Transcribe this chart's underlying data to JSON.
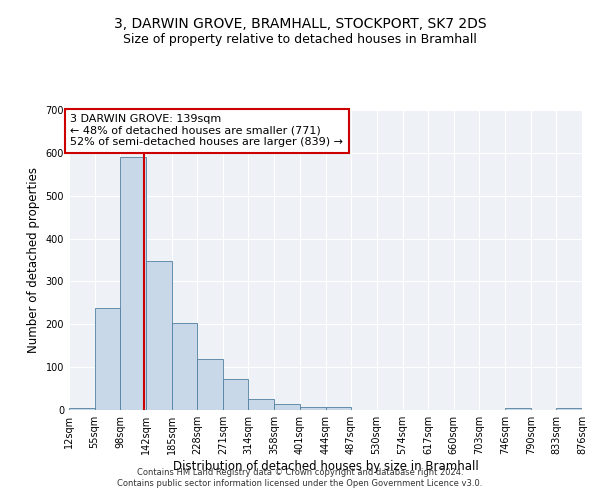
{
  "title": "3, DARWIN GROVE, BRAMHALL, STOCKPORT, SK7 2DS",
  "subtitle": "Size of property relative to detached houses in Bramhall",
  "xlabel": "Distribution of detached houses by size in Bramhall",
  "ylabel": "Number of detached properties",
  "footer_line1": "Contains HM Land Registry data © Crown copyright and database right 2024.",
  "footer_line2": "Contains public sector information licensed under the Open Government Licence v3.0.",
  "bin_edges": [
    12,
    55,
    98,
    142,
    185,
    228,
    271,
    314,
    358,
    401,
    444,
    487,
    530,
    574,
    617,
    660,
    703,
    746,
    790,
    833,
    876
  ],
  "bar_heights": [
    5,
    238,
    590,
    348,
    203,
    118,
    72,
    25,
    13,
    7,
    8,
    0,
    0,
    0,
    0,
    0,
    0,
    5,
    0,
    5
  ],
  "bar_color": "#c8d8e8",
  "bar_edgecolor": "#5080a0",
  "property_size": 139,
  "vline_color": "#cc0000",
  "annotation_line1": "3 DARWIN GROVE: 139sqm",
  "annotation_line2": "← 48% of detached houses are smaller (771)",
  "annotation_line3": "52% of semi-detached houses are larger (839) →",
  "annotation_box_edgecolor": "#cc0000",
  "annotation_box_facecolor": "#ffffff",
  "ylim": [
    0,
    700
  ],
  "yticks": [
    0,
    100,
    200,
    300,
    400,
    500,
    600,
    700
  ],
  "bg_color": "#eef2f7",
  "grid_color": "#ffffff",
  "title_fontsize": 10,
  "subtitle_fontsize": 9,
  "axis_label_fontsize": 8.5,
  "tick_fontsize": 7,
  "annotation_fontsize": 8,
  "footer_fontsize": 6
}
